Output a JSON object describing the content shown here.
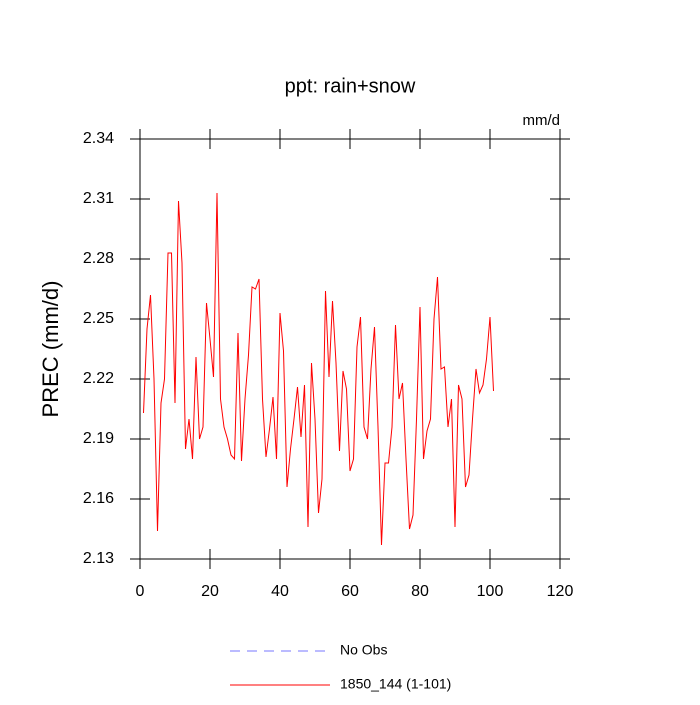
{
  "chart_data": {
    "type": "line",
    "title": "ppt: rain+snow",
    "units": "mm/d",
    "y_label": "PREC  (mm/d)",
    "x": [
      1,
      2,
      3,
      4,
      5,
      6,
      7,
      8,
      9,
      10,
      11,
      12,
      13,
      14,
      15,
      16,
      17,
      18,
      19,
      20,
      21,
      22,
      23,
      24,
      25,
      26,
      27,
      28,
      29,
      30,
      31,
      32,
      33,
      34,
      35,
      36,
      37,
      38,
      39,
      40,
      41,
      42,
      43,
      44,
      45,
      46,
      47,
      48,
      49,
      50,
      51,
      52,
      53,
      54,
      55,
      56,
      57,
      58,
      59,
      60,
      61,
      62,
      63,
      64,
      65,
      66,
      67,
      68,
      69,
      70,
      71,
      72,
      73,
      74,
      75,
      76,
      77,
      78,
      79,
      80,
      81,
      82,
      83,
      84,
      85,
      86,
      87,
      88,
      89,
      90,
      91,
      92,
      93,
      94,
      95,
      96,
      97,
      98,
      99,
      100,
      101
    ],
    "series": [
      {
        "name": "1850_144 (1-101)",
        "color": "#ff0000",
        "values": [
          2.203,
          2.245,
          2.262,
          2.22,
          2.144,
          2.208,
          2.22,
          2.283,
          2.283,
          2.208,
          2.309,
          2.278,
          2.185,
          2.2,
          2.18,
          2.231,
          2.19,
          2.196,
          2.258,
          2.24,
          2.221,
          2.313,
          2.21,
          2.196,
          2.19,
          2.182,
          2.18,
          2.243,
          2.179,
          2.21,
          2.232,
          2.266,
          2.265,
          2.27,
          2.21,
          2.181,
          2.195,
          2.211,
          2.18,
          2.253,
          2.234,
          2.166,
          2.185,
          2.2,
          2.216,
          2.191,
          2.217,
          2.146,
          2.228,
          2.2,
          2.153,
          2.17,
          2.264,
          2.221,
          2.259,
          2.228,
          2.184,
          2.224,
          2.215,
          2.174,
          2.18,
          2.236,
          2.251,
          2.196,
          2.19,
          2.225,
          2.246,
          2.196,
          2.137,
          2.178,
          2.178,
          2.196,
          2.247,
          2.21,
          2.218,
          2.18,
          2.145,
          2.152,
          2.2,
          2.256,
          2.18,
          2.194,
          2.2,
          2.25,
          2.271,
          2.225,
          2.226,
          2.196,
          2.21,
          2.146,
          2.217,
          2.21,
          2.166,
          2.172,
          2.2,
          2.225,
          2.213,
          2.217,
          2.23,
          2.251,
          2.214
        ]
      }
    ],
    "legend_entries": [
      {
        "label": "No Obs",
        "color": "#7777ff",
        "style": "dashed"
      },
      {
        "label": "1850_144 (1-101)",
        "color": "#ff0000",
        "style": "solid"
      }
    ],
    "xlim": [
      0,
      120
    ],
    "xticks": [
      0,
      20,
      40,
      60,
      80,
      100,
      120
    ],
    "ylim": [
      2.13,
      2.34
    ],
    "yticks": [
      2.13,
      2.16,
      2.19,
      2.22,
      2.25,
      2.28,
      2.31,
      2.34
    ]
  }
}
